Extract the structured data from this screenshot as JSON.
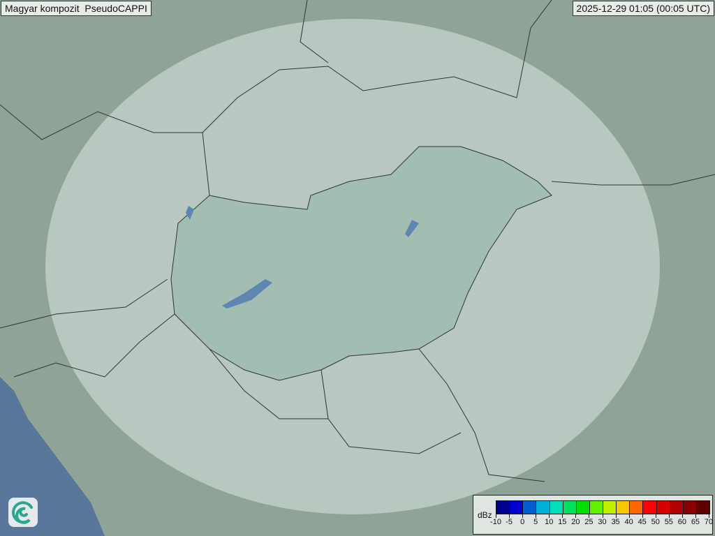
{
  "header": {
    "title": "Magyar kompozit  PseudoCAPPI",
    "timestamp": "2025-12-29 01:05 (00:05 UTC)"
  },
  "legend": {
    "unit": "dBz",
    "ticks": [
      "-10",
      "-5",
      "0",
      "5",
      "10",
      "15",
      "20",
      "25",
      "30",
      "35",
      "40",
      "45",
      "50",
      "55",
      "60",
      "65",
      "70"
    ],
    "colors": [
      "#000090",
      "#0000d0",
      "#0060d0",
      "#00b0d8",
      "#00e0b8",
      "#00e060",
      "#00e000",
      "#60f000",
      "#c0f000",
      "#f8c800",
      "#ff6800",
      "#ff0000",
      "#d80000",
      "#b00000",
      "#880000",
      "#600000"
    ]
  },
  "map": {
    "land_color": "#8fa497",
    "radar_coverage_color": "#d4e0da",
    "hungary_color": "#8fb5a8",
    "sea_color": "#58779a",
    "lake_color": "#5f86b0"
  },
  "logo": {
    "icon": "met-service-swirl-logo"
  }
}
